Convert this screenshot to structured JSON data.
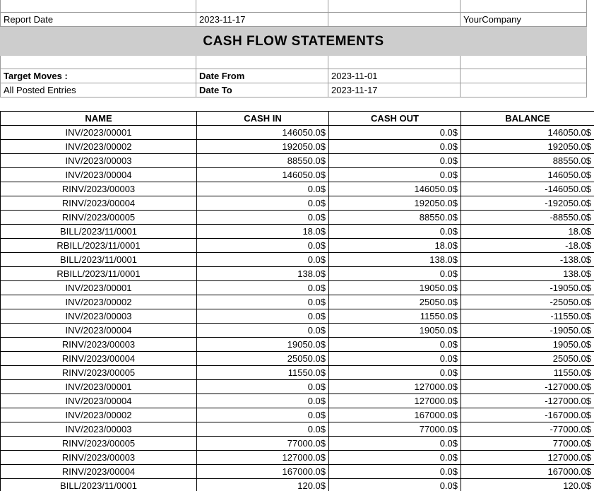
{
  "report": {
    "report_date_label": "Report Date",
    "report_date_value": "2023-11-17",
    "company": "YourCompany",
    "title": "CASH FLOW STATEMENTS",
    "target_moves_label": "Target Moves :",
    "target_moves_value": "All Posted Entries",
    "date_from_label": "Date From",
    "date_from_value": "2023-11-01",
    "date_to_label": "Date To",
    "date_to_value": "2023-11-17"
  },
  "colors": {
    "banner_bg": "#cdcdcd",
    "grid_border": "#9b9b9b",
    "table_border": "#000000"
  },
  "table": {
    "columns": [
      "NAME",
      "CASH IN",
      "CASH OUT",
      "BALANCE"
    ],
    "rows": [
      [
        "INV/2023/00001",
        "146050.0$",
        "0.0$",
        "146050.0$"
      ],
      [
        "INV/2023/00002",
        "192050.0$",
        "0.0$",
        "192050.0$"
      ],
      [
        "INV/2023/00003",
        "88550.0$",
        "0.0$",
        "88550.0$"
      ],
      [
        "INV/2023/00004",
        "146050.0$",
        "0.0$",
        "146050.0$"
      ],
      [
        "RINV/2023/00003",
        "0.0$",
        "146050.0$",
        "-146050.0$"
      ],
      [
        "RINV/2023/00004",
        "0.0$",
        "192050.0$",
        "-192050.0$"
      ],
      [
        "RINV/2023/00005",
        "0.0$",
        "88550.0$",
        "-88550.0$"
      ],
      [
        "BILL/2023/11/0001",
        "18.0$",
        "0.0$",
        "18.0$"
      ],
      [
        "RBILL/2023/11/0001",
        "0.0$",
        "18.0$",
        "-18.0$"
      ],
      [
        "BILL/2023/11/0001",
        "0.0$",
        "138.0$",
        "-138.0$"
      ],
      [
        "RBILL/2023/11/0001",
        "138.0$",
        "0.0$",
        "138.0$"
      ],
      [
        "INV/2023/00001",
        "0.0$",
        "19050.0$",
        "-19050.0$"
      ],
      [
        "INV/2023/00002",
        "0.0$",
        "25050.0$",
        "-25050.0$"
      ],
      [
        "INV/2023/00003",
        "0.0$",
        "11550.0$",
        "-11550.0$"
      ],
      [
        "INV/2023/00004",
        "0.0$",
        "19050.0$",
        "-19050.0$"
      ],
      [
        "RINV/2023/00003",
        "19050.0$",
        "0.0$",
        "19050.0$"
      ],
      [
        "RINV/2023/00004",
        "25050.0$",
        "0.0$",
        "25050.0$"
      ],
      [
        "RINV/2023/00005",
        "11550.0$",
        "0.0$",
        "11550.0$"
      ],
      [
        "INV/2023/00001",
        "0.0$",
        "127000.0$",
        "-127000.0$"
      ],
      [
        "INV/2023/00004",
        "0.0$",
        "127000.0$",
        "-127000.0$"
      ],
      [
        "INV/2023/00002",
        "0.0$",
        "167000.0$",
        "-167000.0$"
      ],
      [
        "INV/2023/00003",
        "0.0$",
        "77000.0$",
        "-77000.0$"
      ],
      [
        "RINV/2023/00005",
        "77000.0$",
        "0.0$",
        "77000.0$"
      ],
      [
        "RINV/2023/00003",
        "127000.0$",
        "0.0$",
        "127000.0$"
      ],
      [
        "RINV/2023/00004",
        "167000.0$",
        "0.0$",
        "167000.0$"
      ],
      [
        "BILL/2023/11/0001",
        "120.0$",
        "0.0$",
        "120.0$"
      ]
    ]
  }
}
